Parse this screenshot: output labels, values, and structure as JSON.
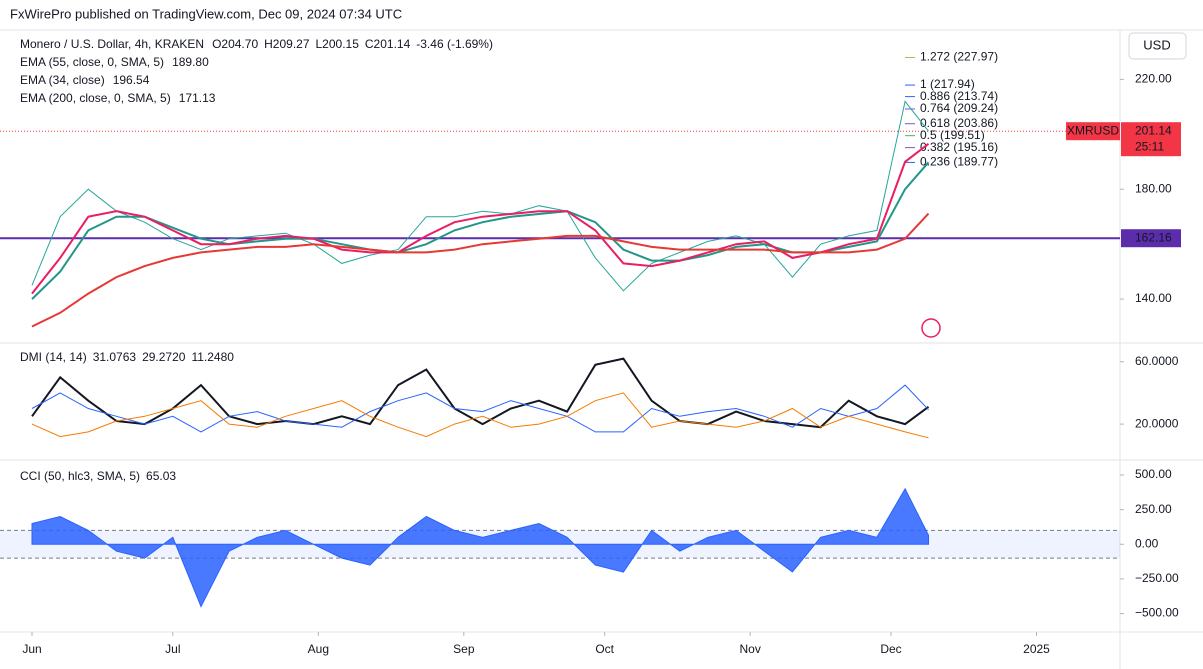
{
  "header": "FxWirePro published on TradingView.com, Dec 09, 2024 07:34 UTC",
  "currency": "USD",
  "legend": {
    "symbol": "Monero / U.S. Dollar, 4h, KRAKEN",
    "ohlc": [
      "O204.70",
      "H209.27",
      "L200.15",
      "C201.14",
      "-3.46 (-1.69%)"
    ],
    "emas": [
      {
        "name": "EMA (55, close, 0, SMA, 5)",
        "value": "189.80",
        "color": "#22968a"
      },
      {
        "name": "EMA (34, close)",
        "value": "196.54",
        "color": "#e91e63"
      },
      {
        "name": "EMA (200, close, 0, SMA, 5)",
        "value": "171.13",
        "color": "#e53935"
      }
    ]
  },
  "chart_data": [
    {
      "type": "line",
      "pane": "price",
      "x": [
        0,
        6,
        12,
        18,
        24,
        30,
        36,
        42,
        48,
        54,
        60,
        66,
        72,
        78,
        84,
        90,
        96,
        102,
        108,
        114,
        120,
        126,
        132,
        138,
        144,
        150,
        156,
        162,
        168,
        174,
        180,
        186,
        191
      ],
      "xlim": [
        -5,
        230
      ],
      "xticks": [
        {
          "value": 0,
          "label": "Jun"
        },
        {
          "value": 30,
          "label": "Jul"
        },
        {
          "value": 61,
          "label": "Aug"
        },
        {
          "value": 92,
          "label": "Sep"
        },
        {
          "value": 122,
          "label": "Oct"
        },
        {
          "value": 153,
          "label": "Nov"
        },
        {
          "value": 183,
          "label": "Dec"
        },
        {
          "value": 214,
          "label": "2025"
        }
      ],
      "ylim": [
        124,
        238
      ],
      "yticks": [
        {
          "value": 220,
          "label": "220.00"
        },
        {
          "value": 180,
          "label": "180.00"
        },
        {
          "value": 140,
          "label": "140.00"
        }
      ],
      "series": [
        {
          "color": "#26a69a",
          "values": [
            145,
            170,
            180,
            172,
            168,
            162,
            158,
            162,
            163,
            164,
            160,
            153,
            156,
            158,
            170,
            170,
            172,
            171,
            174,
            172,
            155,
            143,
            153,
            157,
            161,
            163,
            160,
            148,
            160,
            163,
            165,
            212,
            201.14
          ]
        },
        {
          "color": "#22968a",
          "values": [
            140,
            150,
            165,
            170,
            170,
            166,
            162,
            160,
            161,
            162,
            162,
            160,
            158,
            157,
            160,
            165,
            168,
            170,
            171,
            172,
            168,
            158,
            154,
            154,
            156,
            159,
            160,
            157,
            157,
            159,
            161,
            180,
            189.8
          ]
        },
        {
          "color": "#e91e63",
          "values": [
            142,
            155,
            170,
            172,
            170,
            165,
            160,
            160,
            162,
            163,
            162,
            158,
            157,
            157,
            163,
            168,
            170,
            171,
            172,
            172,
            165,
            153,
            152,
            154,
            157,
            160,
            161,
            155,
            157,
            160,
            162,
            190,
            196.54
          ]
        },
        {
          "color": "#e53935",
          "values": [
            130,
            135,
            142,
            148,
            152,
            155,
            157,
            158,
            159,
            159,
            160,
            159,
            158,
            157,
            157,
            158,
            160,
            161,
            162,
            163,
            163,
            161,
            159,
            158,
            158,
            158,
            158,
            157,
            157,
            157,
            158,
            162,
            171.13
          ]
        }
      ],
      "last": {
        "symbol": "XMRUSD",
        "price": {
          "value": 201.14,
          "label": "201.14"
        },
        "countdown": "25:11"
      },
      "hline": {
        "value": 162.16,
        "label": "162.16",
        "color": "#5b2dab"
      },
      "fib": [
        {
          "value": 227.97,
          "label": "1.272 (227.97)",
          "color": "#9fc23b"
        },
        {
          "value": 217.94,
          "label": "1 (217.94)",
          "color": "#2962ff"
        },
        {
          "value": 213.74,
          "label": "0.886 (213.74)",
          "color": "#2962ff"
        },
        {
          "value": 209.24,
          "label": "0.764 (209.24)",
          "color": "#7e57c2"
        },
        {
          "value": 203.86,
          "label": "0.618 (203.86)",
          "color": "#7e57c2"
        },
        {
          "value": 199.51,
          "label": "0.5 (199.51)",
          "color": "#4caf50"
        },
        {
          "value": 195.16,
          "label": "0.382 (195.16)",
          "color": "#7e57c2"
        },
        {
          "value": 189.77,
          "label": "0.236 (189.77)",
          "color": "#2962ff"
        }
      ]
    },
    {
      "type": "line",
      "pane": "dmi",
      "title": "DMI (14, 14)",
      "ylim": [
        -3,
        72
      ],
      "yticks": [
        {
          "value": 60,
          "label": "60.0000"
        },
        {
          "value": 20,
          "label": "20.0000"
        }
      ],
      "series": [
        {
          "name": "31.0763",
          "color": "#131722",
          "values": [
            25,
            50,
            35,
            22,
            20,
            30,
            45,
            25,
            20,
            22,
            20,
            25,
            20,
            45,
            55,
            30,
            20,
            30,
            35,
            28,
            58,
            62,
            35,
            22,
            20,
            28,
            22,
            20,
            18,
            35,
            25,
            20,
            31.0763
          ]
        },
        {
          "name": "29.2720",
          "color": "#2962ff",
          "values": [
            30,
            40,
            30,
            25,
            20,
            25,
            15,
            25,
            28,
            22,
            20,
            18,
            28,
            35,
            40,
            30,
            28,
            35,
            30,
            25,
            15,
            15,
            30,
            25,
            28,
            30,
            25,
            18,
            30,
            25,
            30,
            45,
            29.272
          ]
        },
        {
          "name": "11.2480",
          "color": "#f57c00",
          "values": [
            20,
            12,
            15,
            22,
            25,
            30,
            35,
            20,
            18,
            25,
            30,
            35,
            25,
            18,
            12,
            20,
            25,
            18,
            20,
            25,
            35,
            40,
            18,
            22,
            20,
            18,
            22,
            30,
            18,
            25,
            20,
            15,
            11.248
          ]
        }
      ]
    },
    {
      "type": "area",
      "pane": "cci",
      "title": "CCI (50, hlc3, SMA, 5)",
      "value_label": "65.03",
      "color": "#2962ff",
      "band": [
        -100,
        100
      ],
      "ylim": [
        -633,
        608
      ],
      "yticks": [
        {
          "value": 500,
          "label": "500.00"
        },
        {
          "value": 250,
          "label": "250.00"
        },
        {
          "value": 0,
          "label": "0.00"
        },
        {
          "value": -250,
          "label": "−250.00"
        },
        {
          "value": -500,
          "label": "−500.00"
        }
      ],
      "values": [
        150,
        200,
        100,
        -50,
        -100,
        50,
        -450,
        -50,
        50,
        100,
        0,
        -100,
        -150,
        50,
        200,
        100,
        50,
        100,
        150,
        50,
        -150,
        -200,
        100,
        -50,
        50,
        100,
        -50,
        -200,
        50,
        100,
        50,
        400,
        65.03
      ]
    }
  ]
}
